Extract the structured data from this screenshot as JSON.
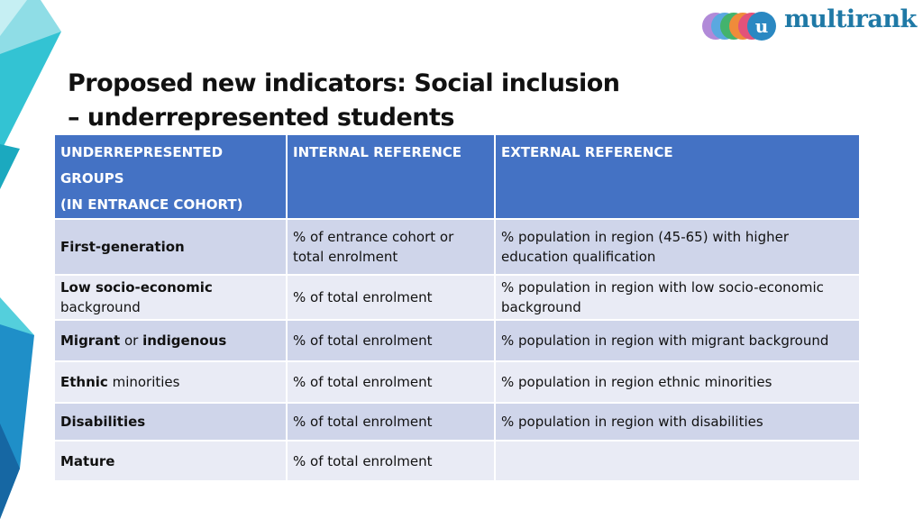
{
  "brand": {
    "logo_text": "multirank",
    "logo_letter": "u"
  },
  "title": {
    "line1": "Proposed new indicators: Social inclusion",
    "line2": "– underrepresented students"
  },
  "table": {
    "headers": {
      "col1_line1": "UNDERREPRESENTED GROUPS",
      "col1_line2": "(IN ENTRANCE COHORT)",
      "col2": "INTERNAL REFERENCE",
      "col3": "EXTERNAL REFERENCE"
    },
    "rows": [
      {
        "group_bold": "First-generation",
        "group_rest": "",
        "internal": "% of entrance cohort or total enrolment",
        "external": "% population in region (45-65) with higher education qualification"
      },
      {
        "group_bold": "Low socio-economic",
        "group_rest": "background",
        "internal": "% of total enrolment",
        "external": "% population in region with low socio-economic background"
      },
      {
        "group_bold": "Migrant",
        "group_mid": " or ",
        "group_bold2": "indigenous",
        "internal": "% of total enrolment",
        "external": "% population in region with migrant background"
      },
      {
        "group_bold": "Ethnic",
        "group_rest": " minorities",
        "internal": "% of total enrolment",
        "external": "% population in region ethnic minorities"
      },
      {
        "group_bold": "Disabilities",
        "group_rest": "",
        "internal": "% of total enrolment",
        "external": "% population in region with disabilities"
      },
      {
        "group_bold": "Mature",
        "group_rest": "",
        "internal": "% of total enrolment",
        "external": ""
      }
    ]
  },
  "colors": {
    "header": "#4472c4",
    "row_dark": "#cfd5ea",
    "row_light": "#e9ebf5",
    "logo": "#1f79a6"
  }
}
